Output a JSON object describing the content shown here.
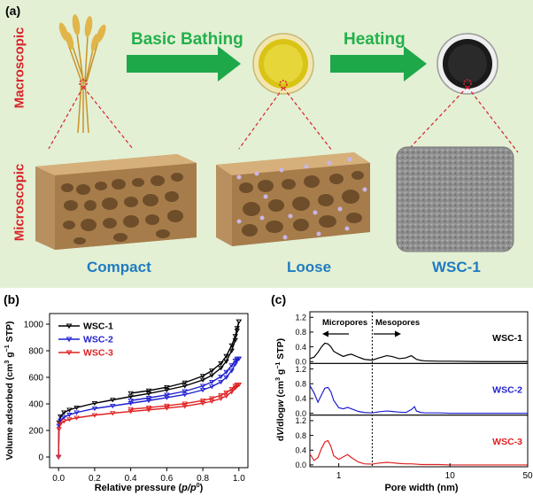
{
  "panel_a": {
    "label": "(a)",
    "row_labels": [
      "Macroscopic",
      "Microscopic"
    ],
    "steps": [
      "Basic Bathing",
      "Heating"
    ],
    "captions": [
      "Compact",
      "Loose",
      "WSC-1"
    ],
    "colors": {
      "step": "#23b04b",
      "row": "#d8232a",
      "caption": "#1f7bc0",
      "background": "#e3f0d4"
    }
  },
  "chart_data": [
    {
      "panel_label": "(b)",
      "type": "line",
      "xlabel": "Relative pressure (p/p0)",
      "ylabel": "Volume adsorbed (cm3 g-1 STP)",
      "ylabel_parts": {
        "pre": "Volume adsorbed (cm",
        "sup1": "3",
        "mid": " g",
        "sup2": "−1",
        "post": " STP)"
      },
      "xlabel_parts": {
        "pre": "Relative pressure (",
        "p1": "p",
        "slash": "/",
        "p2": "p",
        "sup": "0",
        "post": ")"
      },
      "xlim": [
        -0.05,
        1.05
      ],
      "ylim": [
        -80,
        1080
      ],
      "xticks": [
        "0.0",
        "0.2",
        "0.4",
        "0.6",
        "0.8",
        "1.0"
      ],
      "yticks": [
        "0",
        "200",
        "400",
        "600",
        "800",
        "1000"
      ],
      "legend": [
        "WSC-1",
        "WSC-2",
        "WSC-3"
      ],
      "series": [
        {
          "name": "WSC-1",
          "color": "#000000",
          "x": [
            0.0,
            0.002,
            0.01,
            0.03,
            0.06,
            0.1,
            0.2,
            0.3,
            0.4,
            0.5,
            0.6,
            0.7,
            0.8,
            0.85,
            0.9,
            0.93,
            0.96,
            0.98,
            0.99,
            1.0
          ],
          "adsorption": [
            0,
            260,
            305,
            335,
            355,
            372,
            405,
            430,
            455,
            478,
            505,
            535,
            580,
            615,
            670,
            720,
            800,
            880,
            950,
            1020
          ],
          "desorption": [
            null,
            null,
            null,
            null,
            null,
            null,
            null,
            null,
            480,
            500,
            525,
            560,
            610,
            650,
            705,
            760,
            840,
            910,
            970,
            1020
          ]
        },
        {
          "name": "WSC-2",
          "color": "#1f1fd0",
          "x": [
            0.0,
            0.002,
            0.01,
            0.03,
            0.06,
            0.1,
            0.2,
            0.3,
            0.4,
            0.5,
            0.6,
            0.7,
            0.8,
            0.85,
            0.9,
            0.93,
            0.96,
            0.98,
            0.99,
            1.0
          ],
          "adsorption": [
            0,
            235,
            275,
            300,
            318,
            335,
            365,
            385,
            405,
            425,
            447,
            470,
            505,
            530,
            565,
            600,
            650,
            700,
            730,
            740
          ],
          "desorption": [
            null,
            null,
            null,
            null,
            null,
            null,
            null,
            null,
            425,
            445,
            468,
            495,
            535,
            565,
            605,
            640,
            690,
            725,
            740,
            740
          ]
        },
        {
          "name": "WSC-3",
          "color": "#e02020",
          "x": [
            0.0,
            0.002,
            0.01,
            0.03,
            0.06,
            0.1,
            0.2,
            0.3,
            0.4,
            0.5,
            0.6,
            0.7,
            0.8,
            0.85,
            0.9,
            0.93,
            0.96,
            0.98,
            0.99,
            1.0
          ],
          "adsorption": [
            0,
            210,
            250,
            270,
            283,
            295,
            315,
            330,
            343,
            355,
            368,
            382,
            405,
            420,
            440,
            460,
            490,
            520,
            535,
            545
          ],
          "desorption": [
            null,
            null,
            null,
            null,
            null,
            null,
            null,
            null,
            360,
            372,
            386,
            402,
            425,
            442,
            465,
            485,
            512,
            535,
            545,
            545
          ]
        }
      ]
    },
    {
      "panel_label": "(c)",
      "type": "line",
      "xscale": "log",
      "xlabel": "Pore width (nm)",
      "ylabel": "dV/dlogw (cm3 g-1 STP)",
      "ylabel_parts": {
        "a": "d",
        "b": "V",
        "c": "/dlog",
        "d": "w",
        "e": " (cm",
        "sup1": "3",
        "f": " g",
        "sup2": "−1",
        "g": " STP)"
      },
      "xlim": [
        0.55,
        50
      ],
      "xticks": [
        "1",
        "10",
        "50"
      ],
      "yticks": [
        "0.0",
        "0.4",
        "0.8",
        "1.2"
      ],
      "ylim": [
        -0.05,
        1.35
      ],
      "divider_x": 2,
      "annotations": [
        "Micropores",
        "Mesopores"
      ],
      "series": [
        {
          "name": "WSC-1",
          "color": "#000000",
          "x": [
            0.55,
            0.6,
            0.65,
            0.7,
            0.75,
            0.8,
            0.85,
            0.9,
            1.0,
            1.1,
            1.2,
            1.3,
            1.5,
            1.7,
            2.0,
            2.3,
            2.7,
            3.0,
            3.5,
            4.0,
            4.5,
            5.0,
            5.5,
            6.0,
            8.0,
            10,
            20,
            50
          ],
          "y": [
            0.08,
            0.12,
            0.25,
            0.4,
            0.5,
            0.48,
            0.4,
            0.28,
            0.2,
            0.14,
            0.18,
            0.2,
            0.12,
            0.06,
            0.04,
            0.1,
            0.16,
            0.14,
            0.08,
            0.1,
            0.16,
            0.06,
            0.03,
            0.02,
            0.01,
            0.01,
            0.0,
            0.0
          ]
        },
        {
          "name": "WSC-2",
          "color": "#1f1fd0",
          "x": [
            0.55,
            0.6,
            0.65,
            0.7,
            0.75,
            0.8,
            0.85,
            0.9,
            1.0,
            1.1,
            1.2,
            1.3,
            1.5,
            1.7,
            2.0,
            2.3,
            2.7,
            3.0,
            3.5,
            4.0,
            4.5,
            4.8,
            5.0,
            5.5,
            6.0,
            8.0,
            10,
            20,
            50
          ],
          "y": [
            0.75,
            0.55,
            0.3,
            0.5,
            0.68,
            0.7,
            0.58,
            0.35,
            0.15,
            0.12,
            0.16,
            0.12,
            0.05,
            0.02,
            0.01,
            0.04,
            0.06,
            0.05,
            0.03,
            0.02,
            0.1,
            0.18,
            0.06,
            0.02,
            0.01,
            0.01,
            0.0,
            0.0,
            0.0
          ]
        },
        {
          "name": "WSC-3",
          "color": "#e02020",
          "x": [
            0.55,
            0.6,
            0.65,
            0.7,
            0.75,
            0.8,
            0.85,
            0.9,
            1.0,
            1.1,
            1.2,
            1.3,
            1.5,
            1.7,
            2.0,
            2.3,
            2.7,
            3.0,
            3.5,
            4.0,
            4.5,
            5.0,
            5.5,
            6.0,
            8.0,
            10,
            20,
            50
          ],
          "y": [
            0.3,
            0.12,
            0.2,
            0.45,
            0.62,
            0.66,
            0.5,
            0.25,
            0.15,
            0.22,
            0.28,
            0.2,
            0.08,
            0.03,
            0.02,
            0.05,
            0.07,
            0.06,
            0.04,
            0.03,
            0.03,
            0.02,
            0.01,
            0.01,
            0.01,
            0.0,
            0.0,
            0.0
          ]
        }
      ]
    }
  ]
}
